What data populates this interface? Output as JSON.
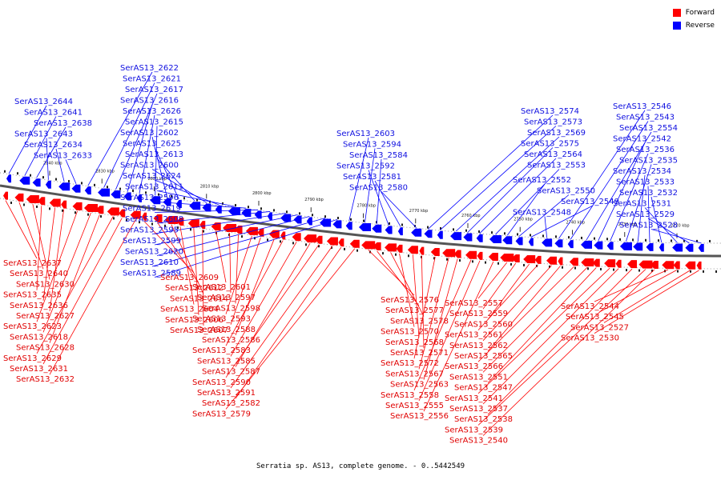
{
  "legend": [
    {
      "label": "Forward",
      "color": "#ff0000"
    },
    {
      "label": "Reverse",
      "color": "#0000ff"
    }
  ],
  "footer": "Serratia sp. AS13, complete genome. - 0..5442549",
  "scale_labels": [
    "2840 kbp",
    "2830 kbp",
    "2820 kbp",
    "2810 kbp",
    "2800 kbp",
    "2790 kbp",
    "2780 kbp",
    "2770 kbp",
    "2760 kbp",
    "2750 kbp",
    "2740 kbp",
    "2730 kbp",
    "2720 kbp"
  ],
  "reverse_genes": [
    "SerAS13_2644",
    "SerAS13_2641",
    "SerAS13_2638",
    "SerAS13_2643",
    "SerAS13_2634",
    "SerAS13_2633",
    "SerAS13_2622",
    "SerAS13_2621",
    "SerAS13_2617",
    "SerAS13_2616",
    "SerAS13_2626",
    "SerAS13_2615",
    "SerAS13_2602",
    "SerAS13_2625",
    "SerAS13_2613",
    "SerAS13_2600",
    "SerAS13_2624",
    "SerAS13_2611",
    "SerAS13_2596",
    "SerAS13_2619",
    "SerAS13_2608",
    "SerAS13_2595",
    "SerAS13_2599",
    "SerAS13_2620",
    "SerAS13_2610",
    "SerAS13_2589",
    "SerAS13_2603",
    "SerAS13_2594",
    "SerAS13_2584",
    "SerAS13_2592",
    "SerAS13_2581",
    "SerAS13_2580",
    "SerAS13_2574",
    "SerAS13_2573",
    "SerAS13_2569",
    "SerAS13_2575",
    "SerAS13_2564",
    "SerAS13_2553",
    "SerAS13_2552",
    "SerAS13_2550",
    "SerAS13_2549",
    "SerAS13_2548",
    "SerAS13_2546",
    "SerAS13_2543",
    "SerAS13_2554",
    "SerAS13_2542",
    "SerAS13_2536",
    "SerAS13_2535",
    "SerAS13_2534",
    "SerAS13_2533",
    "SerAS13_2532",
    "SerAS13_2531",
    "SerAS13_2529",
    "SerAS13_2528"
  ],
  "forward_genes": [
    "SerAS13_2637",
    "SerAS13_2640",
    "SerAS13_2630",
    "SerAS13_2635",
    "SerAS13_2636",
    "SerAS13_2627",
    "SerAS13_2623",
    "SerAS13_2618",
    "SerAS13_2628",
    "SerAS13_2629",
    "SerAS13_2631",
    "SerAS13_2632",
    "SerAS13_2609",
    "SerAS13_2612",
    "SerAS13_2614",
    "SerAS13_2604",
    "SerAS13_2606",
    "SerAS13_2607",
    "SerAS13_2601",
    "SerAS13_2597",
    "SerAS13_2598",
    "SerAS13_2593",
    "SerAS13_2588",
    "SerAS13_2586",
    "SerAS13_2583",
    "SerAS13_2585",
    "SerAS13_2587",
    "SerAS13_2590",
    "SerAS13_2591",
    "SerAS13_2582",
    "SerAS13_2579",
    "SerAS13_2576",
    "SerAS13_2577",
    "SerAS13_2578",
    "SerAS13_2570",
    "SerAS13_2568",
    "SerAS13_2571",
    "SerAS13_2572",
    "SerAS13_2567",
    "SerAS13_2563",
    "SerAS13_2558",
    "SerAS13_2555",
    "SerAS13_2556",
    "SerAS13_2557",
    "SerAS13_2559",
    "SerAS13_2560",
    "SerAS13_2561",
    "SerAS13_2562",
    "SerAS13_2565",
    "SerAS13_2566",
    "SerAS13_2551",
    "SerAS13_2547",
    "SerAS13_2541",
    "SerAS13_2537",
    "SerAS13_2538",
    "SerAS13_2539",
    "SerAS13_2540",
    "SerAS13_2544",
    "SerAS13_2545",
    "SerAS13_2527",
    "SerAS13_2530"
  ]
}
